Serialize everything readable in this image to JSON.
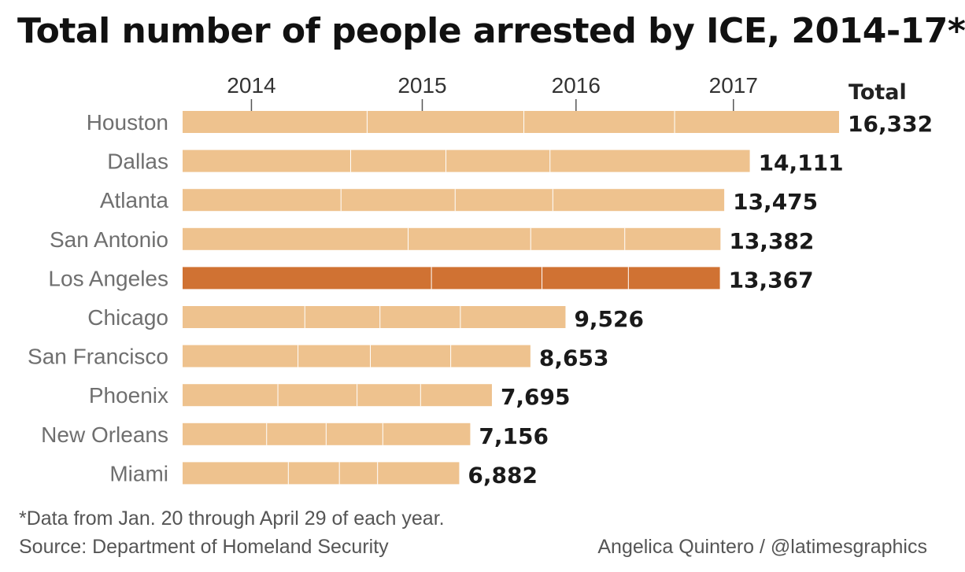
{
  "title": "Total number of people arrested by ICE, 2014-17*",
  "footnote": "*Data from Jan. 20 through April 29 of each year.",
  "source": "Source: Department of Homeland Security",
  "credit": "Angelica Quintero / @latimesgraphics",
  "colors": {
    "bar": "#eec28e",
    "highlight": "#d07233",
    "segment_divider": "#ffffff",
    "tick": "#555555"
  },
  "chart_data": {
    "type": "bar",
    "orientation": "horizontal",
    "stacked": true,
    "title": "Total number of people arrested by ICE, 2014-17*",
    "segment_labels": [
      "2014",
      "2015",
      "2016",
      "2017"
    ],
    "total_label": "Total",
    "highlight_category": "Los Angeles",
    "categories": [
      "Houston",
      "Dallas",
      "Atlanta",
      "San Antonio",
      "Los Angeles",
      "Chicago",
      "San Francisco",
      "Phoenix",
      "New Orleans",
      "Miami"
    ],
    "series": [
      {
        "name": "2014",
        "values": [
          4600,
          4190,
          3950,
          5620,
          6200,
          3050,
          2880,
          2380,
          2100,
          2640
        ]
      },
      {
        "name": "2015",
        "values": [
          3900,
          2370,
          2840,
          3050,
          2750,
          1870,
          1800,
          1970,
          1480,
          1270
        ]
      },
      {
        "name": "2016",
        "values": [
          3750,
          2590,
          2430,
          2340,
          2150,
          2000,
          2000,
          1580,
          1410,
          950
        ]
      },
      {
        "name": "2017",
        "values": [
          4082,
          4961,
          4255,
          2372,
          2267,
          2606,
          1973,
          1765,
          2166,
          2022
        ]
      }
    ],
    "totals": [
      16332,
      14111,
      13475,
      13382,
      13367,
      9526,
      8653,
      7695,
      7156,
      6882
    ],
    "total_labels": [
      "16,332",
      "14,111",
      "13,475",
      "13,382",
      "13,367",
      "9,526",
      "8,653",
      "7,695",
      "7,156",
      "6,882"
    ],
    "xlim": [
      0,
      16332
    ],
    "grid": false,
    "legend": "none"
  }
}
